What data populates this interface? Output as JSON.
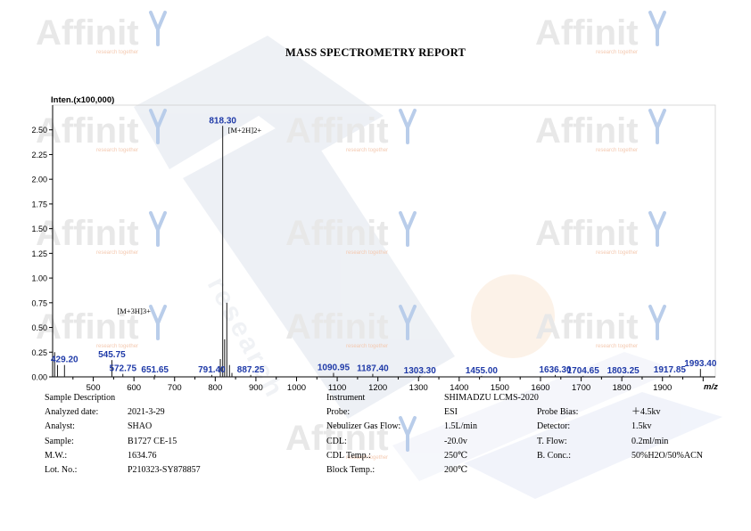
{
  "report": {
    "title": "MASS SPECTROMETRY REPORT"
  },
  "watermark": {
    "brand": "Affinit",
    "tagline": "research together",
    "diagonal_text": "research"
  },
  "chart_data": {
    "type": "line",
    "ylabel": "Inten.(x100,000)",
    "xlabel": "m/z",
    "xlim": [
      400,
      2030
    ],
    "ylim": [
      0,
      2.75
    ],
    "xticks": [
      500,
      600,
      700,
      800,
      900,
      1000,
      1100,
      1200,
      1300,
      1400,
      1500,
      1600,
      1700,
      1800,
      1900
    ],
    "yticks": [
      "0.00",
      "0.25",
      "0.50",
      "0.75",
      "1.00",
      "1.25",
      "1.50",
      "1.75",
      "2.00",
      "2.25",
      "2.50"
    ],
    "grid": false,
    "peaks": [
      {
        "mz": 405.0,
        "y": 0.25
      },
      {
        "mz": 412.0,
        "y": 0.12
      },
      {
        "mz": 429.2,
        "y": 0.12,
        "label": "429.20"
      },
      {
        "mz": 545.75,
        "y": 0.17,
        "label": "545.75"
      },
      {
        "mz": 572.75,
        "y": 0.03,
        "label": "572.75"
      },
      {
        "mz": 651.65,
        "y": 0.02,
        "label": "651.65"
      },
      {
        "mz": 791.4,
        "y": 0.02,
        "label": "791.40"
      },
      {
        "mz": 812.5,
        "y": 0.18
      },
      {
        "mz": 818.3,
        "y": 2.54,
        "label": "818.30"
      },
      {
        "mz": 823.0,
        "y": 0.38
      },
      {
        "mz": 828.5,
        "y": 0.75
      },
      {
        "mz": 835.0,
        "y": 0.12
      },
      {
        "mz": 841.0,
        "y": 0.04
      },
      {
        "mz": 887.25,
        "y": 0.02,
        "label": "887.25"
      },
      {
        "mz": 1090.95,
        "y": 0.04,
        "label": "1090.95"
      },
      {
        "mz": 1187.4,
        "y": 0.03,
        "label": "1187.40"
      },
      {
        "mz": 1303.3,
        "y": 0.01,
        "label": "1303.30"
      },
      {
        "mz": 1455.0,
        "y": 0.01,
        "label": "1455.00"
      },
      {
        "mz": 1636.3,
        "y": 0.02,
        "label": "1636.30"
      },
      {
        "mz": 1704.65,
        "y": 0.01,
        "label": "1704.65"
      },
      {
        "mz": 1803.25,
        "y": 0.01,
        "label": "1803.25"
      },
      {
        "mz": 1917.85,
        "y": 0.02,
        "label": "1917.85"
      },
      {
        "mz": 1993.4,
        "y": 0.08,
        "label": "1993.40"
      }
    ],
    "annotations": [
      {
        "text": "[M+2H]2+",
        "mz": 818.3,
        "y": 2.47
      },
      {
        "text": "[M+3H]3+",
        "mz": 545.75,
        "y": 0.64
      }
    ]
  },
  "info": {
    "left": [
      {
        "label": "Sample Description",
        "value": ""
      },
      {
        "label": "Analyzed date:",
        "value": "2021-3-29"
      },
      {
        "label": "Analyst:",
        "value": "SHAO"
      },
      {
        "label": "Sample:",
        "value": "B1727 CE-15"
      },
      {
        "label": "M.W.:",
        "value": "1634.76"
      },
      {
        "label": "Lot. No.:",
        "value": "P210323-SY878857"
      }
    ],
    "middle": [
      {
        "label": "Instrument",
        "value": "SHIMADZU LCMS-2020"
      },
      {
        "label": "Probe:",
        "value": "ESI"
      },
      {
        "label": "Nebulizer Gas Flow:",
        "value": "1.5L/min"
      },
      {
        "label": "CDL:",
        "value": "-20.0v"
      },
      {
        "label": "CDL Temp.:",
        "value": "250℃"
      },
      {
        "label": "Block Temp.:",
        "value": "200℃"
      }
    ],
    "right": [
      {
        "label": "Probe Bias:",
        "value": "＋4.5kv"
      },
      {
        "label": "Detector:",
        "value": "1.5kv"
      },
      {
        "label": "T. Flow:",
        "value": "0.2ml/min"
      },
      {
        "label": "B. Conc.:",
        "value": "50%H2O/50%ACN"
      }
    ]
  }
}
